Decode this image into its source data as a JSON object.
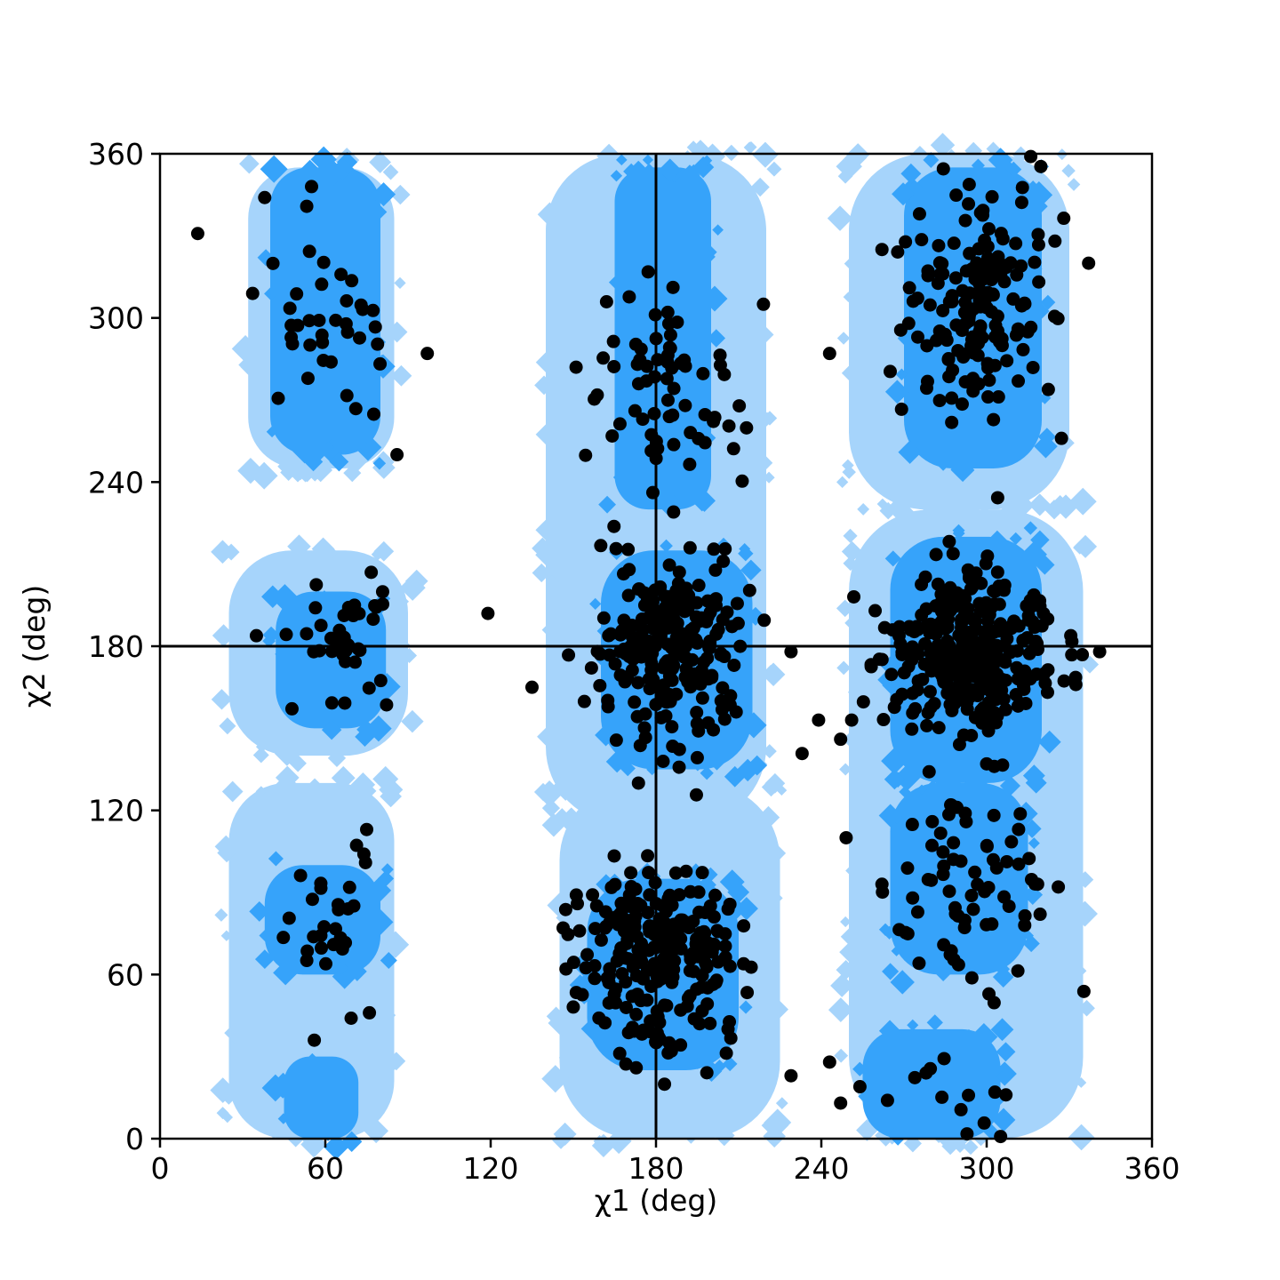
{
  "chart_data": {
    "type": "scatter",
    "title": "",
    "xlabel": "χ1 (deg)",
    "ylabel": "χ2 (deg)",
    "xlim": [
      0,
      360
    ],
    "ylim": [
      0,
      360
    ],
    "xticks": [
      0,
      60,
      120,
      180,
      240,
      300,
      360
    ],
    "yticks": [
      0,
      60,
      120,
      180,
      240,
      300,
      360
    ],
    "reference_lines": {
      "x": 180,
      "y": 180
    },
    "colors": {
      "outer_contour": "#a6d4fb",
      "inner_contour": "#36a3fa",
      "points": "#000000",
      "lines": "#000000"
    },
    "density_contours": {
      "levels": [
        "outer",
        "inner"
      ],
      "outer_regions": [
        {
          "x": [
            32,
            85
          ],
          "y": [
            245,
            355
          ]
        },
        {
          "x": [
            25,
            90
          ],
          "y": [
            140,
            215
          ]
        },
        {
          "x": [
            25,
            85
          ],
          "y": [
            0,
            130
          ]
        },
        {
          "x": [
            140,
            220
          ],
          "y": [
            115,
            360
          ]
        },
        {
          "x": [
            145,
            225
          ],
          "y": [
            0,
            130
          ]
        },
        {
          "x": [
            250,
            330
          ],
          "y": [
            230,
            360
          ]
        },
        {
          "x": [
            250,
            335
          ],
          "y": [
            0,
            230
          ]
        }
      ],
      "inner_regions": [
        {
          "x": [
            40,
            80
          ],
          "y": [
            250,
            355
          ]
        },
        {
          "x": [
            42,
            82
          ],
          "y": [
            150,
            200
          ]
        },
        {
          "x": [
            38,
            80
          ],
          "y": [
            60,
            100
          ]
        },
        {
          "x": [
            45,
            72
          ],
          "y": [
            0,
            30
          ]
        },
        {
          "x": [
            165,
            200
          ],
          "y": [
            230,
            355
          ]
        },
        {
          "x": [
            160,
            215
          ],
          "y": [
            135,
            215
          ]
        },
        {
          "x": [
            155,
            210
          ],
          "y": [
            25,
            95
          ]
        },
        {
          "x": [
            270,
            320
          ],
          "y": [
            245,
            355
          ]
        },
        {
          "x": [
            265,
            320
          ],
          "y": [
            130,
            220
          ]
        },
        {
          "x": [
            265,
            315
          ],
          "y": [
            60,
            130
          ]
        },
        {
          "x": [
            255,
            305
          ],
          "y": [
            0,
            40
          ]
        }
      ]
    },
    "clusters": [
      {
        "cx": 60,
        "cy": 300,
        "sx": 12,
        "sy": 14,
        "n": 38
      },
      {
        "cx": 65,
        "cy": 180,
        "sx": 10,
        "sy": 11,
        "n": 40
      },
      {
        "cx": 60,
        "cy": 80,
        "sx": 10,
        "sy": 15,
        "n": 26
      },
      {
        "cx": 184,
        "cy": 275,
        "sx": 12,
        "sy": 22,
        "n": 70
      },
      {
        "cx": 185,
        "cy": 180,
        "sx": 14,
        "sy": 16,
        "n": 230
      },
      {
        "cx": 182,
        "cy": 68,
        "sx": 15,
        "sy": 18,
        "n": 250
      },
      {
        "cx": 297,
        "cy": 305,
        "sx": 12,
        "sy": 22,
        "n": 170
      },
      {
        "cx": 295,
        "cy": 178,
        "sx": 15,
        "sy": 14,
        "n": 330
      },
      {
        "cx": 295,
        "cy": 90,
        "sx": 14,
        "sy": 20,
        "n": 70
      },
      {
        "cx": 290,
        "cy": 10,
        "sx": 14,
        "sy": 12,
        "n": 14
      }
    ],
    "outliers": [
      [
        38,
        344
      ],
      [
        55,
        348
      ],
      [
        97,
        287
      ],
      [
        86,
        250
      ],
      [
        119,
        192
      ],
      [
        135,
        165
      ],
      [
        151,
        282
      ],
      [
        219,
        305
      ],
      [
        229,
        178
      ],
      [
        243,
        287
      ],
      [
        251,
        153
      ],
      [
        249,
        110
      ],
      [
        262,
        93
      ],
      [
        300,
        137
      ],
      [
        326,
        92
      ],
      [
        337,
        320
      ],
      [
        341,
        178
      ],
      [
        316,
        359
      ],
      [
        229,
        23
      ],
      [
        243,
        28
      ],
      [
        247,
        13
      ],
      [
        254,
        19
      ],
      [
        264,
        14
      ],
      [
        278,
        24
      ],
      [
        303,
        17
      ],
      [
        307,
        16
      ],
      [
        262,
        325
      ],
      [
        275,
        293
      ],
      [
        247,
        146
      ],
      [
        239,
        153
      ],
      [
        75,
        113
      ],
      [
        74,
        104
      ],
      [
        76,
        46
      ],
      [
        56,
        36
      ]
    ]
  }
}
